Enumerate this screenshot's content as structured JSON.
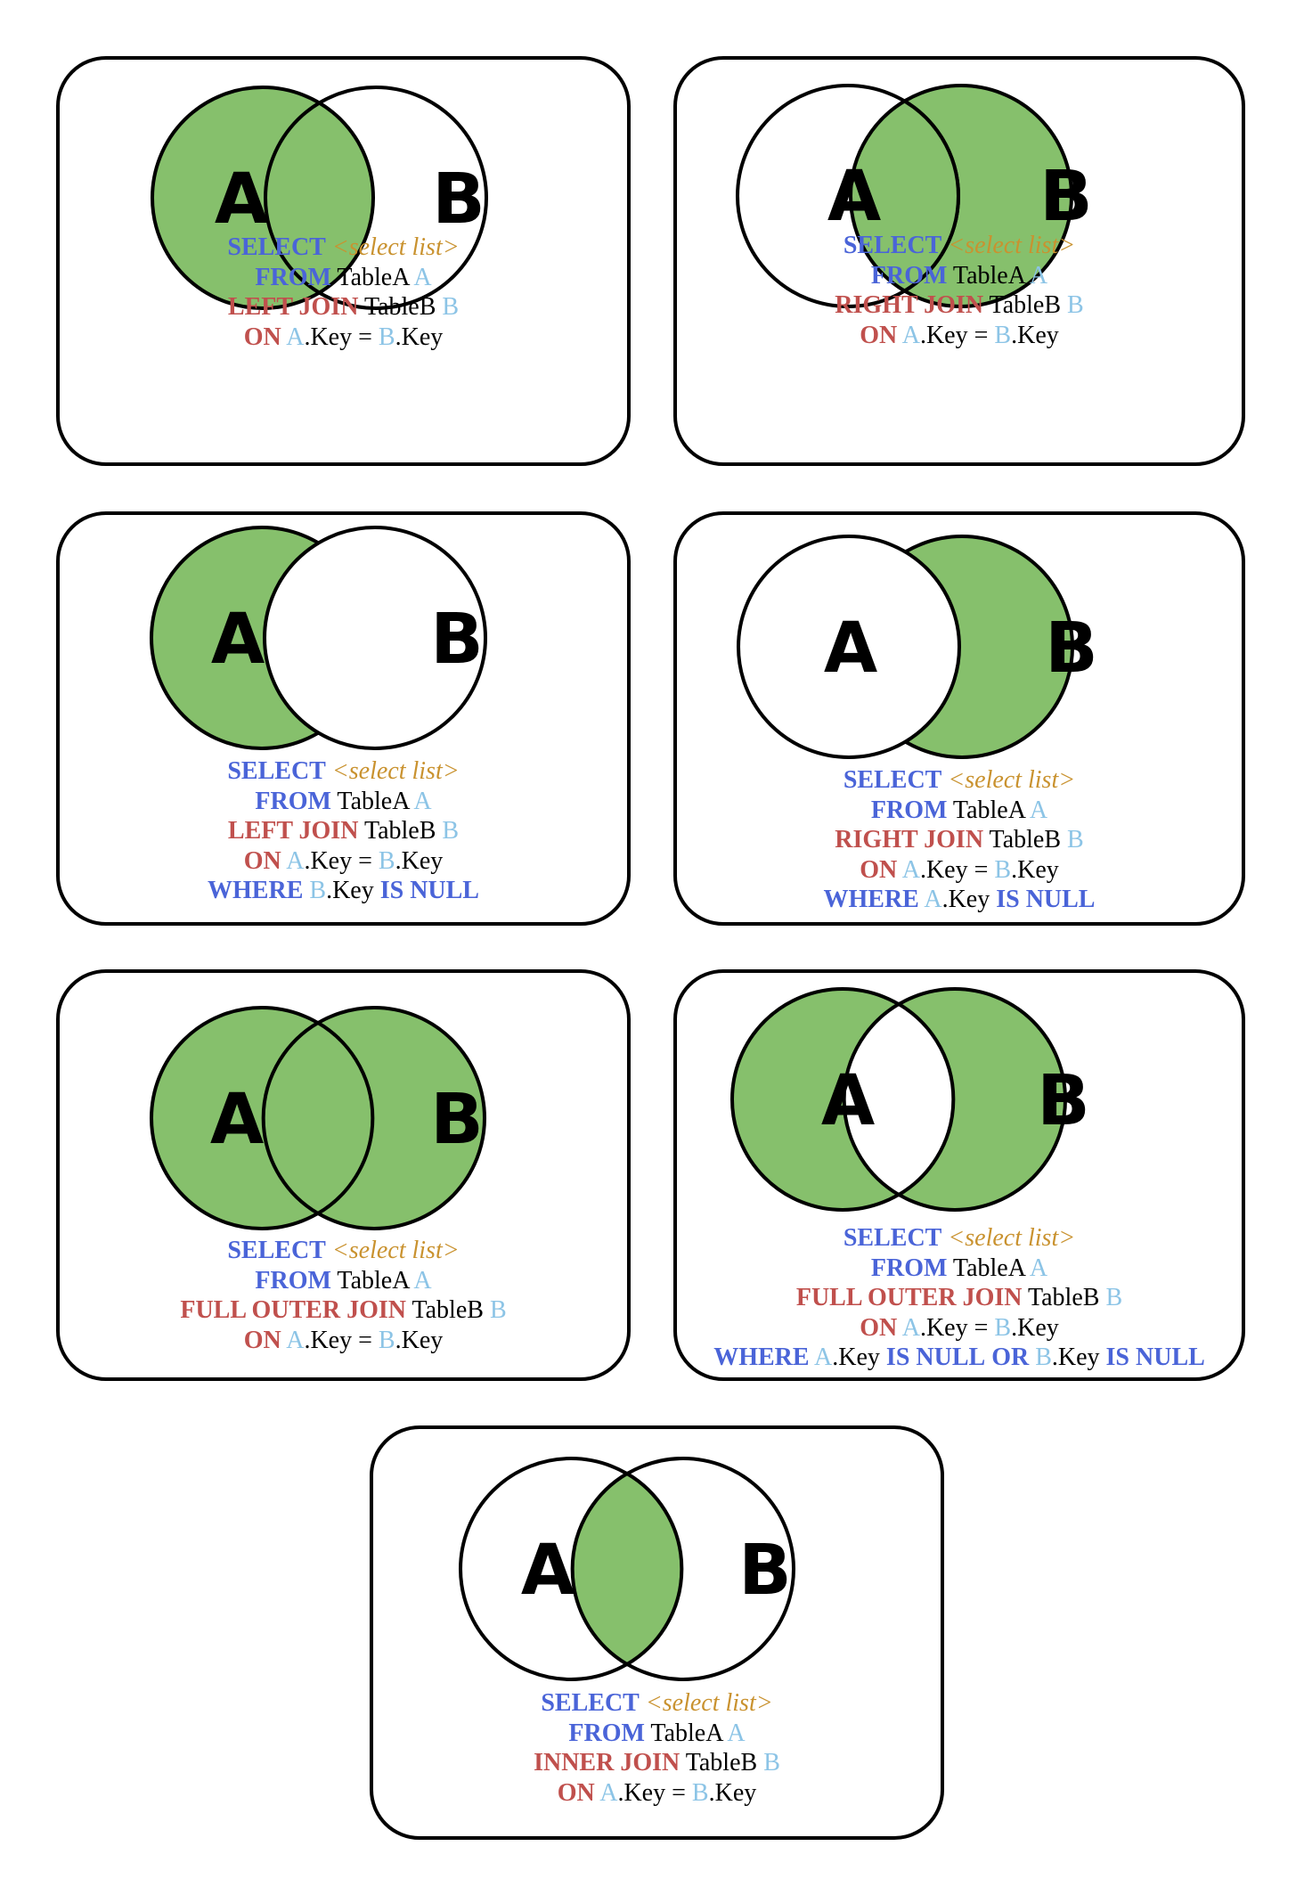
{
  "colors": {
    "fill": "#86c06c",
    "stroke": "#000000",
    "keyword_blue": "#4a64d8",
    "keyword_red": "#c0504d",
    "select_list": "#c9922f",
    "alias": "#8cc4e6"
  },
  "labels": {
    "a": "A",
    "b": "B"
  },
  "sql": {
    "select": "SELECT",
    "select_list": "<select list>",
    "from": "FROM",
    "table_a": "TableA",
    "table_b": "TableB",
    "alias_a": "A",
    "alias_b": "B",
    "left_join": "LEFT JOIN",
    "right_join": "RIGHT JOIN",
    "full_outer_join": "FULL OUTER JOIN",
    "inner_join": "INNER JOIN",
    "on": "ON",
    "key": ".Key",
    "equals": " = ",
    "where": "WHERE",
    "is_null": "IS NULL",
    "or": "OR"
  },
  "diagrams": [
    {
      "id": "left-join",
      "shade": [
        "A"
      ]
    },
    {
      "id": "right-join",
      "shade": [
        "B"
      ]
    },
    {
      "id": "left-excluding-join",
      "shade": [
        "A only"
      ]
    },
    {
      "id": "right-excluding-join",
      "shade": [
        "B only"
      ]
    },
    {
      "id": "full-outer-join",
      "shade": [
        "A",
        "B"
      ]
    },
    {
      "id": "full-outer-excluding-join",
      "shade": [
        "A only",
        "B only"
      ]
    },
    {
      "id": "inner-join",
      "shade": [
        "A and B"
      ]
    }
  ]
}
